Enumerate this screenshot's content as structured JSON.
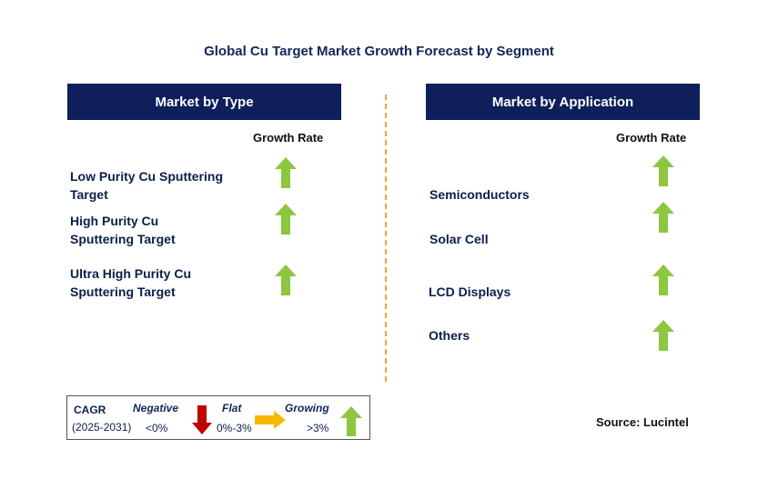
{
  "title": "Global Cu Target Market Growth Forecast by Segment",
  "left_panel": {
    "header": "Market by Type",
    "growth_label": "Growth Rate",
    "items": [
      {
        "label_line1": "Low Purity Cu Sputtering",
        "label_line2": "Target",
        "trend": "growing"
      },
      {
        "label_line1": "High Purity Cu",
        "label_line2": "Sputtering Target",
        "trend": "growing"
      },
      {
        "label_line1": "Ultra High Purity Cu",
        "label_line2": "Sputtering Target",
        "trend": "growing"
      }
    ]
  },
  "right_panel": {
    "header": "Market by Application",
    "growth_label": "Growth Rate",
    "items": [
      {
        "label": "Semiconductors",
        "trend": "growing"
      },
      {
        "label": "Solar Cell",
        "trend": "growing"
      },
      {
        "label": "LCD Displays",
        "trend": "growing"
      },
      {
        "label": "Others",
        "trend": "growing"
      }
    ]
  },
  "legend": {
    "cagr_label": "CAGR",
    "period": "(2025-2031)",
    "negative_label": "Negative",
    "negative_range": "<0%",
    "flat_label": "Flat",
    "flat_range": "0%-3%",
    "growing_label": "Growing",
    "growing_range": ">3%"
  },
  "source": "Source: Lucintel",
  "colors": {
    "header_bg": "#0e1f5b",
    "growing_arrow": "#8dc63f",
    "negative_arrow": "#c00000",
    "flat_arrow": "#f5b800",
    "divider": "#f5a623"
  }
}
